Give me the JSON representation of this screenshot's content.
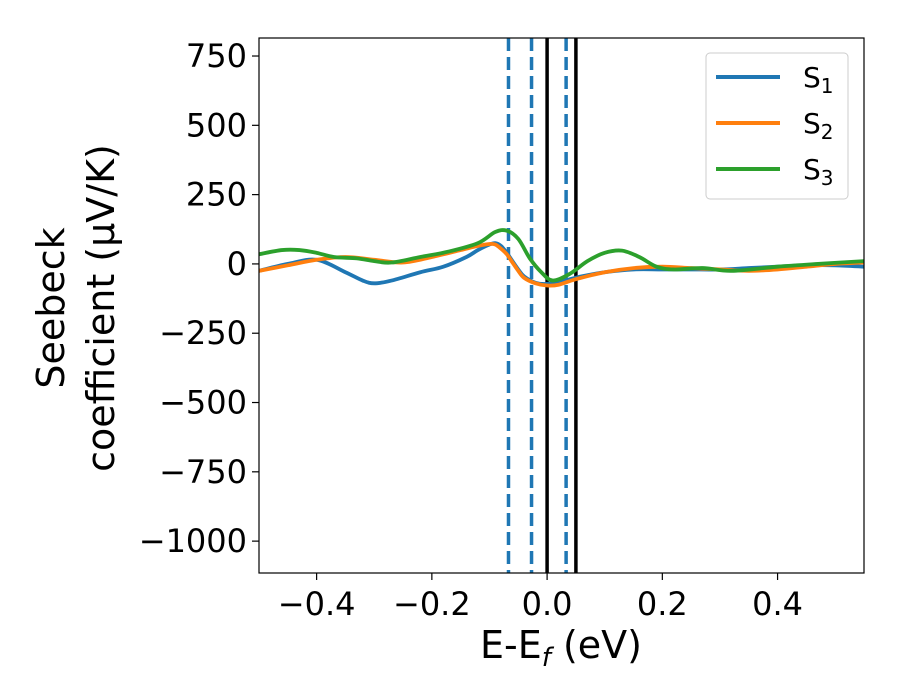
{
  "chart_data": {
    "type": "line",
    "title": "",
    "xlabel": "E-E",
    "xlabel_sub": "f",
    "xlabel_unit": " (eV)",
    "ylabel_line1": "Seebeck",
    "ylabel_line2": "coefficient  (μV/K)",
    "xlim": [
      -0.5,
      0.55
    ],
    "ylim": [
      -1115,
      815
    ],
    "xticks": [
      -0.4,
      -0.2,
      0.0,
      0.2,
      0.4
    ],
    "xtick_labels": [
      "−0.4",
      "−0.2",
      "0.0",
      "0.2",
      "0.4"
    ],
    "yticks": [
      750,
      500,
      250,
      0,
      -250,
      -500,
      -750,
      -1000
    ],
    "ytick_labels": [
      "750",
      "500",
      "250",
      "0",
      "−250",
      "−500",
      "−750",
      "−1000"
    ],
    "grid": false,
    "legend_position": "top-right",
    "series": [
      {
        "name": "S",
        "sub": "1",
        "color": "#1f77b4",
        "x": [
          -0.5,
          -0.45,
          -0.4,
          -0.35,
          -0.32,
          -0.3,
          -0.27,
          -0.22,
          -0.18,
          -0.14,
          -0.12,
          -0.1,
          -0.09,
          -0.08,
          -0.07,
          -0.06,
          -0.05,
          -0.04,
          -0.02,
          0.0,
          0.03,
          0.06,
          0.1,
          0.15,
          0.2,
          0.25,
          0.3,
          0.35,
          0.4,
          0.45,
          0.5,
          0.55
        ],
        "y": [
          -25,
          0,
          15,
          -30,
          -60,
          -70,
          -60,
          -30,
          -10,
          25,
          50,
          70,
          75,
          65,
          40,
          10,
          -20,
          -45,
          -68,
          -72,
          -60,
          -45,
          -30,
          -20,
          -20,
          -20,
          -20,
          -15,
          -10,
          -5,
          -5,
          -10
        ]
      },
      {
        "name": "S",
        "sub": "2",
        "color": "#ff7f0e",
        "x": [
          -0.5,
          -0.45,
          -0.4,
          -0.35,
          -0.3,
          -0.25,
          -0.2,
          -0.15,
          -0.12,
          -0.1,
          -0.09,
          -0.08,
          -0.07,
          -0.06,
          -0.05,
          -0.04,
          -0.02,
          0.0,
          0.02,
          0.05,
          0.1,
          0.15,
          0.2,
          0.25,
          0.3,
          0.35,
          0.4,
          0.45,
          0.5,
          0.55
        ],
        "y": [
          -25,
          -5,
          15,
          25,
          15,
          5,
          25,
          50,
          65,
          72,
          70,
          55,
          35,
          5,
          -25,
          -50,
          -70,
          -78,
          -75,
          -55,
          -30,
          -15,
          -10,
          -15,
          -20,
          -25,
          -20,
          -10,
          0,
          5
        ]
      },
      {
        "name": "S",
        "sub": "3",
        "color": "#2ca02c",
        "x": [
          -0.5,
          -0.46,
          -0.43,
          -0.4,
          -0.37,
          -0.33,
          -0.3,
          -0.27,
          -0.22,
          -0.17,
          -0.12,
          -0.09,
          -0.07,
          -0.05,
          -0.03,
          -0.01,
          0.01,
          0.04,
          0.07,
          0.1,
          0.13,
          0.16,
          0.19,
          0.22,
          0.27,
          0.32,
          0.4,
          0.47,
          0.55
        ],
        "y": [
          35,
          50,
          50,
          40,
          25,
          20,
          10,
          5,
          25,
          45,
          75,
          115,
          120,
          90,
          20,
          -30,
          -60,
          -35,
          10,
          40,
          48,
          25,
          -10,
          -20,
          -15,
          -25,
          -10,
          0,
          10
        ]
      }
    ],
    "vlines": [
      {
        "x": -0.067,
        "style": "dashed",
        "color": "#1f77b4"
      },
      {
        "x": -0.027,
        "style": "dashed",
        "color": "#1f77b4"
      },
      {
        "x": 0.033,
        "style": "dashed",
        "color": "#1f77b4"
      },
      {
        "x": 0.0,
        "style": "solid",
        "color": "#000000"
      },
      {
        "x": 0.05,
        "style": "solid",
        "color": "#000000"
      }
    ]
  }
}
